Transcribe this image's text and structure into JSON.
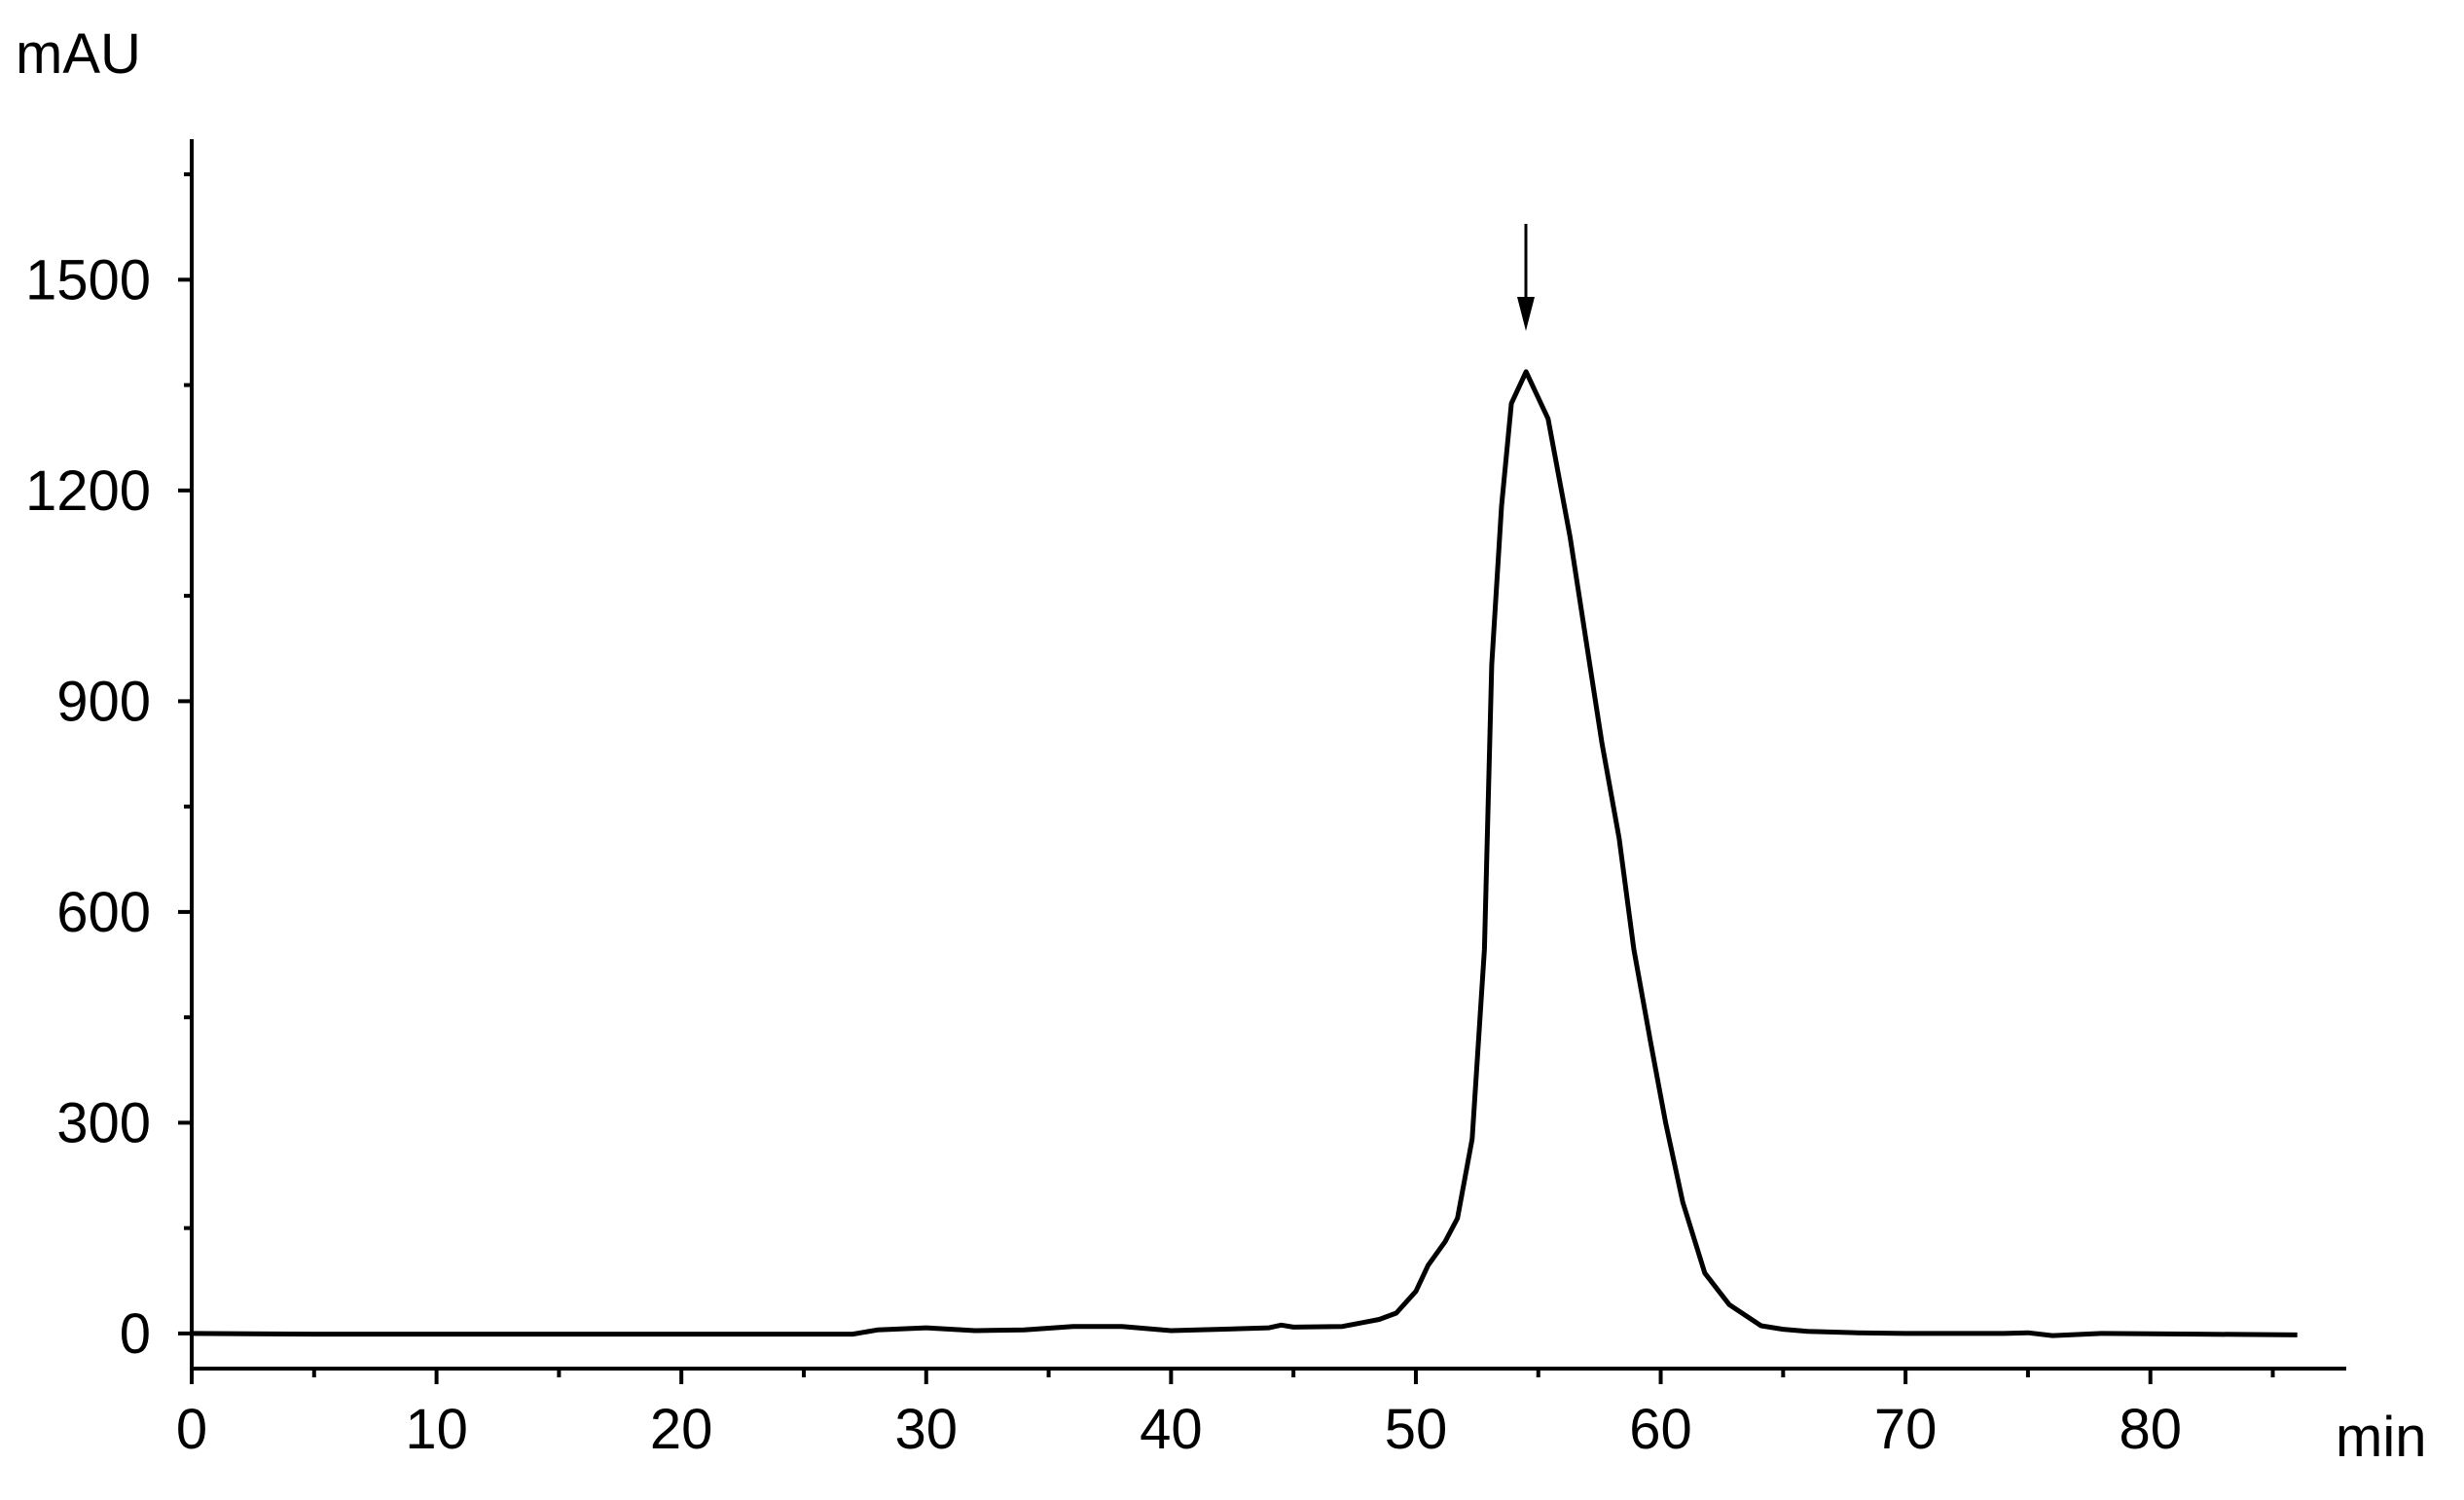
{
  "chart_data": {
    "type": "line",
    "y_label": "mAU",
    "x_label": "min",
    "x": [
      0,
      5,
      10,
      20,
      27,
      28,
      30,
      32,
      34,
      36,
      38,
      40,
      42,
      44,
      44.5,
      45,
      47,
      48.5,
      49.2,
      50,
      50.5,
      51.2,
      51.7,
      52.3,
      52.8,
      53.1,
      53.5,
      53.9,
      54.5,
      55.4,
      56.3,
      57,
      57.6,
      58.3,
      58.9,
      59.6,
      60.2,
      60.9,
      61.8,
      62.8,
      64.1,
      65,
      66,
      68,
      70,
      72,
      74,
      75,
      76,
      78,
      82,
      86
    ],
    "series": [
      {
        "color": "#000000",
        "values": [
          0,
          -1,
          -1,
          -1,
          -1,
          5,
          8,
          4,
          5,
          10,
          10,
          4,
          6,
          8,
          12,
          9,
          10,
          20,
          29,
          60,
          97,
          131,
          164,
          277,
          547,
          952,
          1178,
          1324,
          1369,
          1302,
          1133,
          975,
          840,
          705,
          547,
          412,
          300,
          187,
          86,
          41,
          11,
          6,
          3,
          1,
          0,
          0,
          0,
          1,
          -3,
          0,
          -1,
          -2
        ]
      }
    ],
    "xlim": [
      0,
      88
    ],
    "xticks": [
      0,
      10,
      20,
      30,
      40,
      50,
      60,
      70,
      80
    ],
    "xminorticks": [
      5,
      15,
      25,
      35,
      45,
      55,
      65,
      75,
      85
    ],
    "ylim": [
      -50,
      1700
    ],
    "yticks": [
      0,
      300,
      600,
      900,
      1200,
      1500
    ],
    "yminorticks": [
      150,
      450,
      750,
      1050,
      1350,
      1650
    ],
    "grid": false
  }
}
